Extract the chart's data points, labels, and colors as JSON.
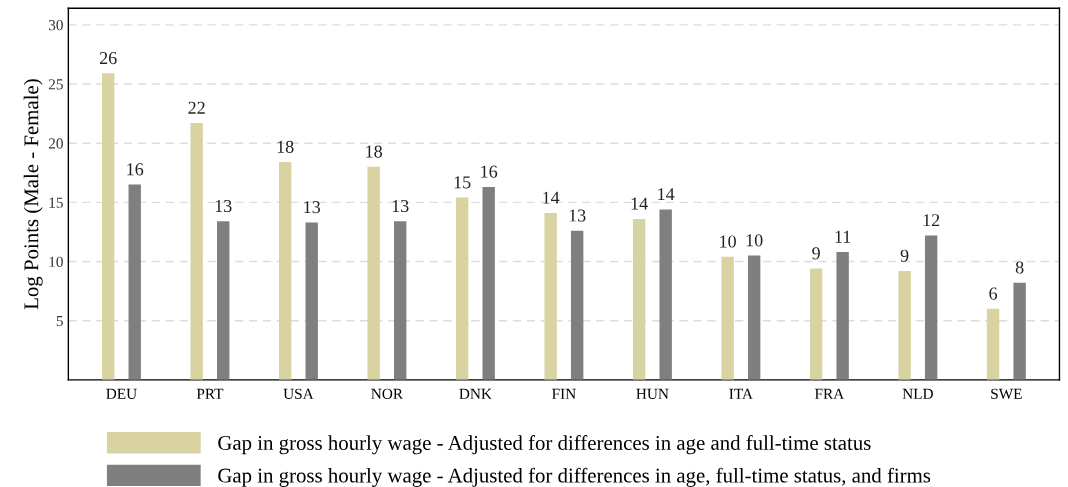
{
  "chart_data": {
    "type": "bar",
    "ylabel": "Log Points (Male - Female)",
    "categories": [
      "DEU",
      "PRT",
      "USA",
      "NOR",
      "DNK",
      "FIN",
      "HUN",
      "ITA",
      "FRA",
      "NLD",
      "SWE"
    ],
    "series": [
      {
        "name": "Gap in gross hourly wage - Adjusted for differences in age and full-time status",
        "color": "#d8d3a0",
        "values": [
          25.9,
          21.7,
          18.4,
          18.0,
          15.4,
          14.1,
          13.6,
          10.4,
          9.4,
          9.2,
          6.0
        ],
        "value_labels": [
          "26",
          "22",
          "18",
          "18",
          "15",
          "14",
          "14",
          "10",
          "9",
          "9",
          "6"
        ]
      },
      {
        "name": "Gap in gross hourly wage - Adjusted for differences in age, full-time status, and firms",
        "color": "#7f7f7f",
        "values": [
          16.5,
          13.4,
          13.3,
          13.4,
          16.3,
          12.6,
          14.4,
          10.5,
          10.8,
          12.2,
          8.2
        ],
        "value_labels": [
          "16",
          "13",
          "13",
          "13",
          "16",
          "13",
          "14",
          "10",
          "11",
          "12",
          "8"
        ]
      }
    ],
    "ylim": [
      0,
      31.4
    ],
    "yticks": [
      5,
      10,
      15,
      20,
      25,
      30
    ],
    "grid": "y",
    "legend": "bottom"
  }
}
